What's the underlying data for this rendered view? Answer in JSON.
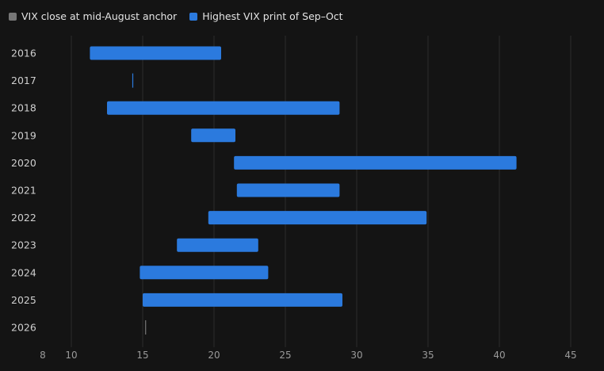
{
  "chart_data": {
    "type": "bar",
    "orientation": "horizontal",
    "bar_style": "floating-range",
    "categories": [
      "2016",
      "2017",
      "2018",
      "2019",
      "2020",
      "2021",
      "2022",
      "2023",
      "2024",
      "2025",
      "2026"
    ],
    "series": [
      {
        "name": "VIX close at mid-August anchor",
        "color": "#777777",
        "values": [
          11.3,
          14.3,
          12.5,
          18.4,
          21.4,
          21.6,
          19.6,
          17.4,
          14.8,
          15.0,
          15.2
        ]
      },
      {
        "name": "Highest VIX print of Sep–Oct",
        "color": "#2b7ade",
        "values": [
          20.5,
          null,
          28.8,
          21.5,
          41.2,
          28.8,
          34.9,
          23.1,
          23.8,
          29.0,
          null
        ]
      }
    ],
    "x_ticks": [
      "8",
      "10",
      "15",
      "20",
      "25",
      "30",
      "35",
      "40",
      "45"
    ],
    "xlim": [
      8,
      45
    ],
    "grid": true,
    "legend_position": "top-left",
    "title": "",
    "xlabel": "",
    "ylabel": ""
  }
}
